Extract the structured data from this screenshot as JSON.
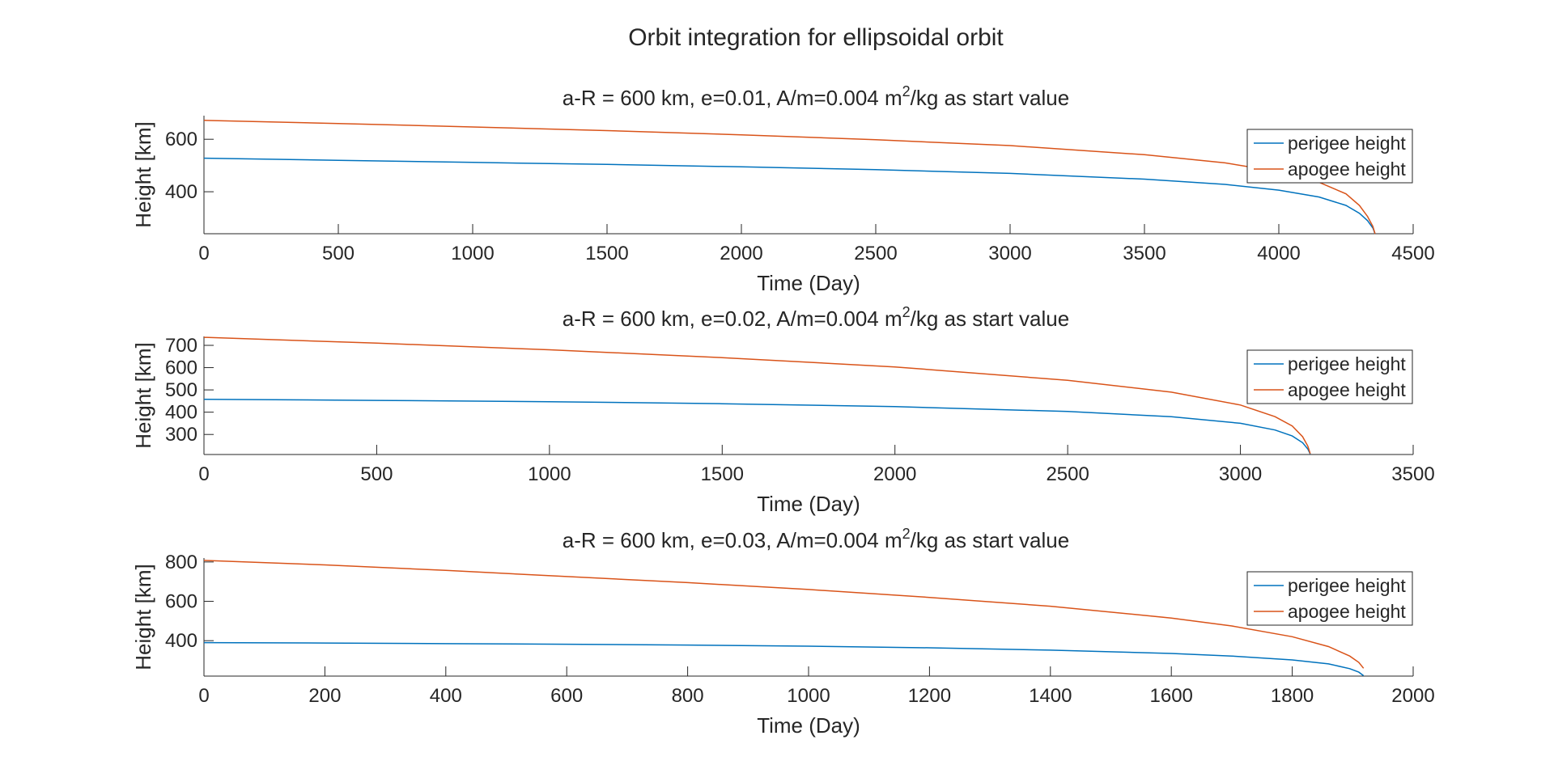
{
  "window": {
    "title": "Orbit integration for ellipsoidal orbit"
  },
  "colors": {
    "perigee": "#0072BD",
    "apogee": "#D95319",
    "axes": "#262626",
    "background": "#ffffff"
  },
  "chart_data": [
    {
      "type": "line",
      "title_main": "a-R = 600 km, e=0.01, A/m=0.004 m",
      "title_sup": "2",
      "title_tail": "/kg as start value",
      "xlabel": "Time (Day)",
      "ylabel": "Height [km]",
      "xlim": [
        0,
        4500
      ],
      "ylim": [
        240,
        690
      ],
      "xticks": [
        0,
        500,
        1000,
        1500,
        2000,
        2500,
        3000,
        3500,
        4000,
        4500
      ],
      "yticks": [
        400,
        600
      ],
      "grid": false,
      "legend": "top-right",
      "series": [
        {
          "name": "perigee height",
          "color": "#0072BD",
          "x": [
            0,
            500,
            1000,
            1500,
            2000,
            2500,
            3000,
            3500,
            3800,
            4000,
            4150,
            4250,
            4300,
            4330,
            4350,
            4358
          ],
          "y": [
            528,
            520,
            512,
            504,
            495,
            484,
            470,
            448,
            428,
            406,
            380,
            348,
            318,
            290,
            262,
            240
          ]
        },
        {
          "name": "apogee height",
          "color": "#D95319",
          "x": [
            0,
            500,
            1000,
            1500,
            2000,
            2500,
            3000,
            3500,
            3800,
            4000,
            4150,
            4250,
            4300,
            4330,
            4350,
            4358
          ],
          "y": [
            672,
            660,
            647,
            633,
            617,
            598,
            576,
            541,
            510,
            476,
            436,
            392,
            348,
            306,
            268,
            240
          ]
        }
      ]
    },
    {
      "type": "line",
      "title_main": "a-R = 600 km, e=0.02, A/m=0.004 m",
      "title_sup": "2",
      "title_tail": "/kg as start value",
      "xlabel": "Time (Day)",
      "ylabel": "Height [km]",
      "xlim": [
        0,
        3500
      ],
      "ylim": [
        210,
        740
      ],
      "xticks": [
        0,
        500,
        1000,
        1500,
        2000,
        2500,
        3000,
        3500
      ],
      "yticks": [
        300,
        400,
        500,
        600,
        700
      ],
      "grid": false,
      "legend": "top-right",
      "series": [
        {
          "name": "perigee height",
          "color": "#0072BD",
          "x": [
            0,
            500,
            1000,
            1500,
            2000,
            2500,
            2800,
            3000,
            3100,
            3150,
            3180,
            3195,
            3202
          ],
          "y": [
            458,
            453,
            447,
            438,
            425,
            403,
            380,
            350,
            320,
            293,
            263,
            235,
            212
          ]
        },
        {
          "name": "apogee height",
          "color": "#D95319",
          "x": [
            0,
            500,
            1000,
            1500,
            2000,
            2500,
            2800,
            3000,
            3100,
            3150,
            3180,
            3195,
            3202
          ],
          "y": [
            736,
            710,
            680,
            645,
            603,
            543,
            490,
            432,
            380,
            338,
            290,
            248,
            214
          ]
        }
      ]
    },
    {
      "type": "line",
      "title_main": "a-R = 600 km, e=0.03, A/m=0.004 m",
      "title_sup": "2",
      "title_tail": "/kg as start value",
      "xlabel": "Time (Day)",
      "ylabel": "Height [km]",
      "xlim": [
        0,
        2000
      ],
      "ylim": [
        220,
        820
      ],
      "xticks": [
        0,
        200,
        400,
        600,
        800,
        1000,
        1200,
        1400,
        1600,
        1800,
        2000
      ],
      "yticks": [
        400,
        600,
        800
      ],
      "grid": false,
      "legend": "top-right",
      "series": [
        {
          "name": "perigee height",
          "color": "#0072BD",
          "x": [
            0,
            200,
            400,
            600,
            800,
            1000,
            1200,
            1400,
            1600,
            1700,
            1800,
            1860,
            1895,
            1910,
            1918
          ],
          "y": [
            390,
            388,
            385,
            382,
            378,
            372,
            364,
            352,
            335,
            322,
            302,
            282,
            258,
            240,
            222
          ]
        },
        {
          "name": "apogee height",
          "color": "#D95319",
          "x": [
            0,
            200,
            400,
            600,
            800,
            1000,
            1200,
            1400,
            1600,
            1700,
            1800,
            1860,
            1895,
            1910,
            1918
          ],
          "y": [
            808,
            785,
            757,
            726,
            695,
            660,
            620,
            575,
            515,
            475,
            420,
            370,
            322,
            290,
            260
          ]
        }
      ]
    }
  ]
}
